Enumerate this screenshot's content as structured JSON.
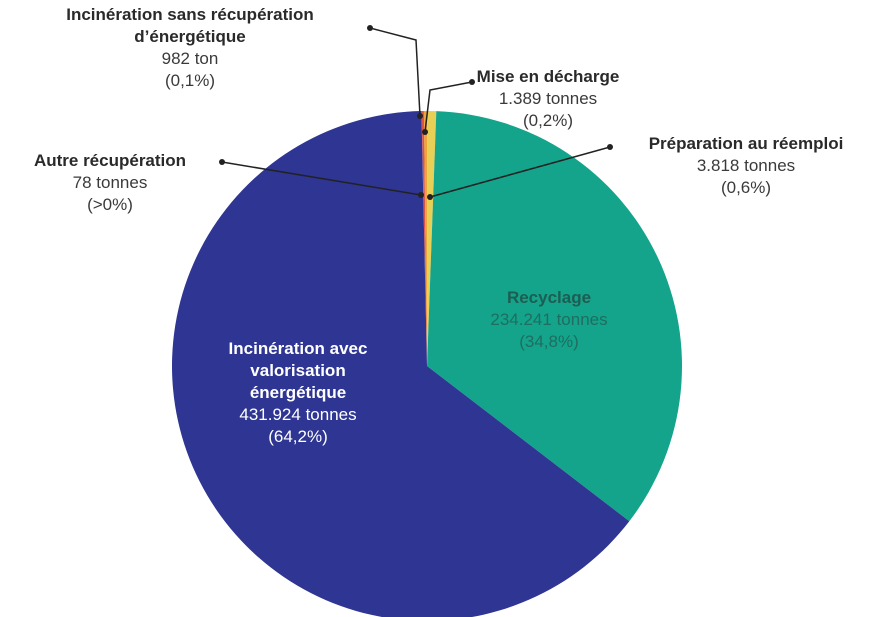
{
  "chart_data": {
    "type": "pie",
    "categories": [
      "Autre récupération",
      "Incinération sans récupération d’énergétique",
      "Mise en décharge",
      "Préparation au réemploi",
      "Recyclage",
      "Incinération avec valorisation énergétique"
    ],
    "values": [
      78,
      982,
      1389,
      3818,
      234241,
      431924
    ],
    "value_labels": [
      "78 tonnes",
      "982 ton",
      "1.389 tonnes",
      "3.818 tonnes",
      "234.241 tonnes",
      "431.924 tonnes"
    ],
    "percent_labels": [
      "(>0%)",
      "(0,1%)",
      "(0,2%)",
      "(0,6%)",
      "(34,8%)",
      "(64,2%)"
    ],
    "colors": [
      "#8a8a8a",
      "#d9544a",
      "#f0a33a",
      "#e8cf55",
      "#13a48b",
      "#2e3592"
    ]
  }
}
